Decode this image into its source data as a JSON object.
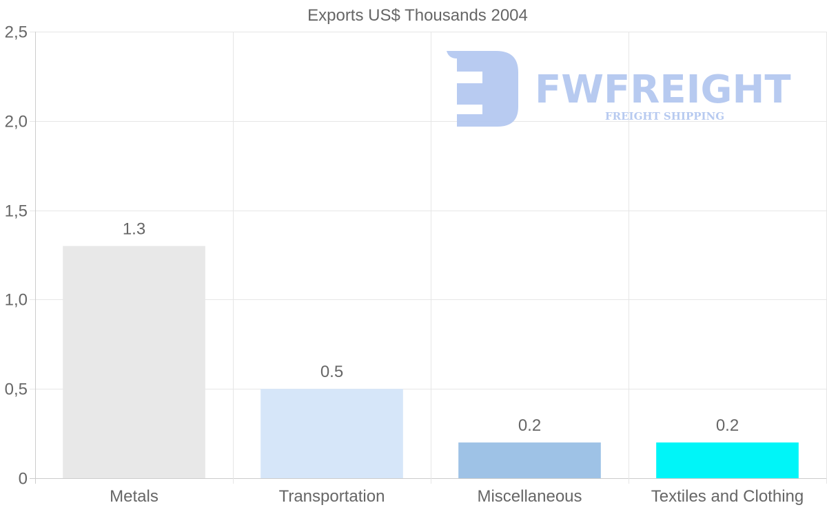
{
  "chart_data": {
    "type": "bar",
    "title": "Exports US$ Thousands 2004",
    "categories": [
      "Metals",
      "Transportation",
      "Miscellaneous",
      "Textiles and Clothing"
    ],
    "values": [
      1.3,
      0.5,
      0.2,
      0.2
    ],
    "value_labels": [
      "1.3",
      "0.5",
      "0.2",
      "0.2"
    ],
    "bar_colors": [
      "#e8e8e8",
      "#d6e6f9",
      "#9ec2e6",
      "#00f5f8"
    ],
    "ylim": [
      0,
      2.5
    ],
    "yticks": [
      0,
      0.5,
      1.0,
      1.5,
      2.0,
      2.5
    ],
    "ytick_labels": [
      "0",
      "0,5",
      "1,0",
      "1,5",
      "2,0",
      "2,5"
    ],
    "xlabel": "",
    "ylabel": "",
    "grid": true,
    "legend": "none"
  },
  "watermark": {
    "name": "FWFREIGHT",
    "tagline": "FREIGHT SHIPPING",
    "color": "#b4c8f0"
  }
}
